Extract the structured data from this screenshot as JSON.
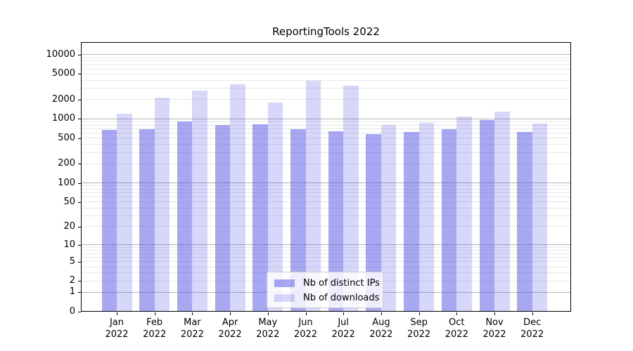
{
  "chart_data": {
    "type": "bar",
    "title": "ReportingTools 2022",
    "categories": [
      "Jan 2022",
      "Feb 2022",
      "Mar 2022",
      "Apr 2022",
      "May 2022",
      "Jun 2022",
      "Jul 2022",
      "Aug 2022",
      "Sep 2022",
      "Oct 2022",
      "Nov 2022",
      "Dec 2022"
    ],
    "series": [
      {
        "name": "Nb of distinct IPs",
        "fill": "rgba(81,81,229,0.5)",
        "values": [
          670,
          700,
          910,
          800,
          820,
          700,
          640,
          580,
          630,
          700,
          950,
          630
        ]
      },
      {
        "name": "Nb of downloads",
        "fill": "rgba(81,81,229,0.23)",
        "values": [
          1200,
          2150,
          2800,
          3500,
          1800,
          3900,
          3300,
          800,
          870,
          1100,
          1300,
          850
        ]
      }
    ],
    "xlabel": "",
    "ylabel": "",
    "yscale": "log1p",
    "ylim": [
      0,
      15700
    ],
    "y_tick_values": [
      0,
      1,
      2,
      5,
      10,
      20,
      50,
      100,
      200,
      500,
      1000,
      2000,
      5000,
      10000
    ],
    "grid": true,
    "legend_position": "lower-center"
  },
  "colors": {
    "bar_base": "#5151e5",
    "grid_major": "#b3b3b3",
    "grid_minor": "#e7e7e7",
    "spine": "#000000",
    "text": "#000000",
    "legend_border": "#cccccc"
  }
}
